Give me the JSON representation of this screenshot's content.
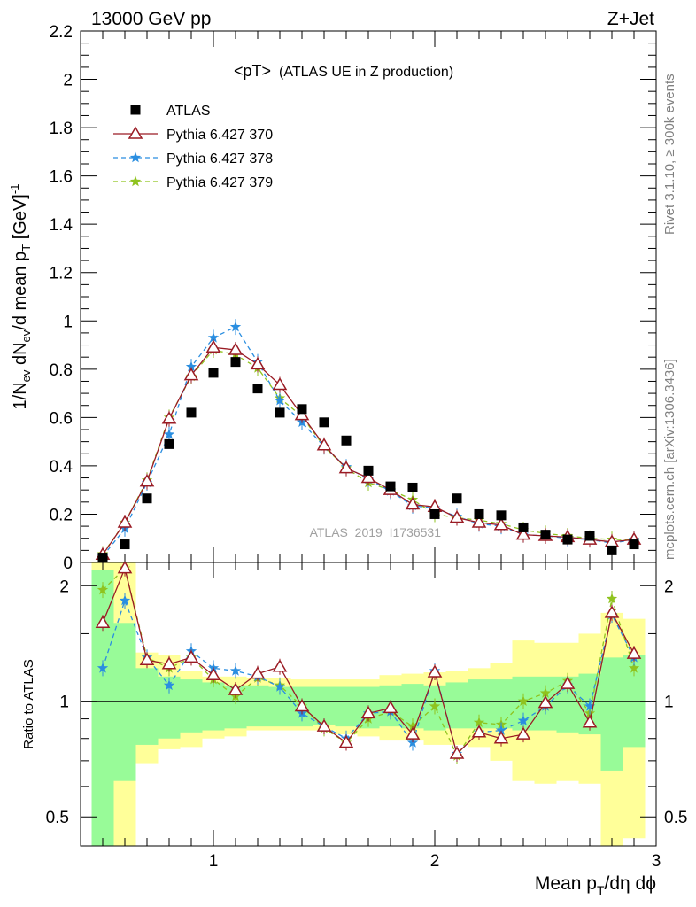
{
  "header": {
    "energy_label": "13000 GeV pp",
    "process_label": "Z+Jet",
    "plot_title": "<pT>",
    "plot_subtitle": "(ATLAS UE in Z production)",
    "analysis_id": "ATLAS_2019_I1736531",
    "rivet_label": "Rivet 3.1.10, ≥ 300k events",
    "mcplots_label": "mcplots.cern.ch [arXiv:1306.3436]"
  },
  "colors": {
    "atlas": "#000000",
    "p370": "#9a1b24",
    "p378": "#2a8ee0",
    "p379": "#8fc31f",
    "band_inner": "#98fb98",
    "band_outer": "#ffff99"
  },
  "chart_data": [
    {
      "type": "scatter",
      "panel": "main",
      "ylabel_parts": {
        "a": "1/N",
        "a_sub": "ev",
        "b": " dN",
        "b_sub": "ev",
        "c": "/d mean p",
        "c_sub": "T",
        "d": " [GeV]",
        "d_sup": "-1"
      },
      "xlim": [
        0.4,
        3.0
      ],
      "ylim": [
        0,
        2.2
      ],
      "yticks": [
        "0",
        "0.2",
        "0.4",
        "0.6",
        "0.8",
        "1",
        "1.2",
        "1.4",
        "1.6",
        "1.8",
        "2",
        "2.2"
      ],
      "legend_position": "top-left",
      "series": [
        {
          "name": "ATLAS",
          "key": "atlas",
          "marker": "square",
          "x": [
            0.5,
            0.6,
            0.7,
            0.8,
            0.9,
            1.0,
            1.1,
            1.2,
            1.3,
            1.4,
            1.5,
            1.6,
            1.7,
            1.8,
            1.9,
            2.0,
            2.1,
            2.2,
            2.3,
            2.4,
            2.5,
            2.6,
            2.7,
            2.8,
            2.9
          ],
          "values": [
            0.02,
            0.075,
            0.265,
            0.49,
            0.62,
            0.785,
            0.83,
            0.72,
            0.62,
            0.635,
            0.58,
            0.505,
            0.38,
            0.315,
            0.31,
            0.2,
            0.265,
            0.2,
            0.195,
            0.145,
            0.115,
            0.095,
            0.11,
            0.05,
            0.075
          ]
        },
        {
          "name": "Pythia 6.427 370",
          "key": "p370",
          "marker": "triangle",
          "x": [
            0.5,
            0.6,
            0.7,
            0.8,
            0.9,
            1.0,
            1.1,
            1.2,
            1.3,
            1.4,
            1.5,
            1.6,
            1.7,
            1.8,
            1.9,
            2.0,
            2.1,
            2.2,
            2.3,
            2.4,
            2.5,
            2.6,
            2.7,
            2.8,
            2.9
          ],
          "values": [
            0.032,
            0.165,
            0.335,
            0.595,
            0.775,
            0.89,
            0.88,
            0.82,
            0.735,
            0.61,
            0.485,
            0.39,
            0.35,
            0.3,
            0.24,
            0.23,
            0.185,
            0.165,
            0.155,
            0.115,
            0.11,
            0.105,
            0.095,
            0.085,
            0.095
          ]
        },
        {
          "name": "Pythia 6.427 378",
          "key": "p378",
          "marker": "star",
          "dashed": true,
          "x": [
            0.5,
            0.6,
            0.7,
            0.8,
            0.9,
            1.0,
            1.1,
            1.2,
            1.3,
            1.4,
            1.5,
            1.6,
            1.7,
            1.8,
            1.9,
            2.0,
            2.1,
            2.2,
            2.3,
            2.4,
            2.5,
            2.6,
            2.7,
            2.8,
            2.9
          ],
          "values": [
            0.025,
            0.14,
            0.33,
            0.53,
            0.81,
            0.93,
            0.975,
            0.83,
            0.67,
            0.58,
            0.48,
            0.395,
            0.345,
            0.295,
            0.235,
            0.225,
            0.19,
            0.16,
            0.15,
            0.115,
            0.11,
            0.1,
            0.095,
            0.08,
            0.095
          ]
        },
        {
          "name": "Pythia 6.427 379",
          "key": "p379",
          "marker": "star",
          "dashed": true,
          "x": [
            0.5,
            0.6,
            0.7,
            0.8,
            0.9,
            1.0,
            1.1,
            1.2,
            1.3,
            1.4,
            1.5,
            1.6,
            1.7,
            1.8,
            1.9,
            2.0,
            2.1,
            2.2,
            2.3,
            2.4,
            2.5,
            2.6,
            2.7,
            2.8,
            2.9
          ],
          "values": [
            0.035,
            0.165,
            0.34,
            0.6,
            0.77,
            0.88,
            0.86,
            0.805,
            0.68,
            0.605,
            0.48,
            0.39,
            0.33,
            0.3,
            0.26,
            0.2,
            0.185,
            0.175,
            0.16,
            0.135,
            0.12,
            0.11,
            0.1,
            0.095,
            0.095
          ]
        }
      ]
    },
    {
      "type": "line",
      "panel": "ratio",
      "ylabel": "Ratio to ATLAS",
      "xlabel_parts": {
        "a": "Mean p",
        "a_sub": "T",
        "b": "/dη dϕ"
      },
      "xlim": [
        0.4,
        3.0
      ],
      "ylim": [
        0.42,
        2.3
      ],
      "log_y": true,
      "xticks": [
        "1",
        "2",
        "3"
      ],
      "yticks": [
        "0.5",
        "1",
        "2"
      ],
      "band_edges": [
        0.45,
        0.55,
        0.65,
        0.75,
        0.85,
        0.95,
        1.05,
        1.15,
        1.25,
        1.35,
        1.45,
        1.55,
        1.65,
        1.75,
        1.85,
        1.95,
        2.05,
        2.15,
        2.25,
        2.35,
        2.45,
        2.55,
        2.65,
        2.75,
        2.85,
        2.95
      ],
      "band_inner": [
        [
          0.25,
          2.2
        ],
        [
          0.62,
          1.6
        ],
        [
          0.77,
          1.22
        ],
        [
          0.8,
          1.16
        ],
        [
          0.83,
          1.14
        ],
        [
          0.84,
          1.12
        ],
        [
          0.85,
          1.1
        ],
        [
          0.86,
          1.1
        ],
        [
          0.86,
          1.09
        ],
        [
          0.86,
          1.09
        ],
        [
          0.87,
          1.09
        ],
        [
          0.86,
          1.09
        ],
        [
          0.85,
          1.09
        ],
        [
          0.86,
          1.1
        ],
        [
          0.85,
          1.11
        ],
        [
          0.84,
          1.1
        ],
        [
          0.85,
          1.12
        ],
        [
          0.85,
          1.14
        ],
        [
          0.85,
          1.14
        ],
        [
          0.84,
          1.16
        ],
        [
          0.84,
          1.16
        ],
        [
          0.83,
          1.16
        ],
        [
          0.82,
          1.18
        ],
        [
          0.66,
          1.3
        ],
        [
          0.76,
          1.32
        ]
      ],
      "band_outer": [
        [
          0.2,
          2.3
        ],
        [
          0.2,
          2.3
        ],
        [
          0.69,
          1.34
        ],
        [
          0.75,
          1.32
        ],
        [
          0.76,
          1.2
        ],
        [
          0.8,
          1.16
        ],
        [
          0.81,
          1.16
        ],
        [
          0.84,
          1.15
        ],
        [
          0.84,
          1.15
        ],
        [
          0.84,
          1.14
        ],
        [
          0.84,
          1.14
        ],
        [
          0.82,
          1.14
        ],
        [
          0.81,
          1.14
        ],
        [
          0.79,
          1.17
        ],
        [
          0.79,
          1.18
        ],
        [
          0.77,
          1.19
        ],
        [
          0.77,
          1.2
        ],
        [
          0.76,
          1.22
        ],
        [
          0.7,
          1.26
        ],
        [
          0.62,
          1.44
        ],
        [
          0.61,
          1.42
        ],
        [
          0.62,
          1.42
        ],
        [
          0.61,
          1.5
        ],
        [
          0.3,
          1.7
        ],
        [
          0.44,
          1.64
        ]
      ],
      "series": [
        {
          "name": "Pythia 6.427 370",
          "key": "p370",
          "marker": "triangle",
          "x": [
            0.5,
            0.6,
            0.7,
            0.8,
            0.9,
            1.0,
            1.1,
            1.2,
            1.3,
            1.4,
            1.5,
            1.6,
            1.7,
            1.8,
            1.9,
            2.0,
            2.1,
            2.2,
            2.3,
            2.4,
            2.5,
            2.6,
            2.7,
            2.8,
            2.9
          ],
          "values": [
            1.6,
            2.22,
            1.28,
            1.25,
            1.3,
            1.17,
            1.07,
            1.18,
            1.23,
            0.97,
            0.86,
            0.78,
            0.93,
            0.96,
            0.82,
            1.19,
            0.73,
            0.83,
            0.8,
            0.82,
            0.99,
            1.11,
            0.88,
            1.7,
            1.33
          ]
        },
        {
          "name": "Pythia 6.427 378",
          "key": "p378",
          "marker": "star",
          "dashed": true,
          "x": [
            0.5,
            0.6,
            0.7,
            0.8,
            0.9,
            1.0,
            1.1,
            1.2,
            1.3,
            1.4,
            1.5,
            1.6,
            1.7,
            1.8,
            1.9,
            2.0,
            2.1,
            2.2,
            2.3,
            2.4,
            2.5,
            2.6,
            2.7,
            2.8,
            2.9
          ],
          "values": [
            1.22,
            1.83,
            1.3,
            1.1,
            1.35,
            1.22,
            1.2,
            1.16,
            1.09,
            0.93,
            0.86,
            0.8,
            0.93,
            0.94,
            0.78,
            1.2,
            0.73,
            0.83,
            0.84,
            0.89,
            0.97,
            1.1,
            0.97,
            1.68,
            1.3
          ]
        },
        {
          "name": "Pythia 6.427 379",
          "key": "p379",
          "marker": "star",
          "dashed": true,
          "x": [
            0.5,
            0.6,
            0.7,
            0.8,
            0.9,
            1.0,
            1.1,
            1.2,
            1.3,
            1.4,
            1.5,
            1.6,
            1.7,
            1.8,
            1.9,
            2.0,
            2.1,
            2.2,
            2.3,
            2.4,
            2.5,
            2.6,
            2.7,
            2.8,
            2.9
          ],
          "values": [
            1.95,
            2.22,
            1.3,
            1.22,
            1.3,
            1.14,
            1.03,
            1.15,
            1.1,
            0.97,
            0.85,
            0.78,
            0.9,
            0.94,
            0.86,
            0.97,
            0.72,
            0.88,
            0.87,
            1.0,
            1.05,
            1.13,
            0.93,
            1.85,
            1.22
          ]
        }
      ]
    }
  ]
}
